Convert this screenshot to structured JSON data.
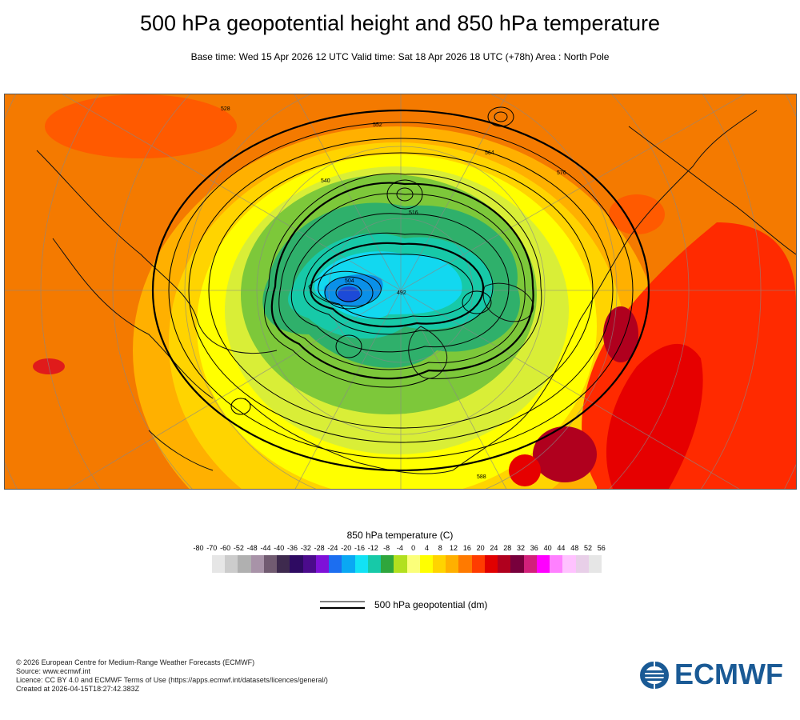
{
  "header": {
    "title": "500 hPa geopotential height and 850 hPa temperature",
    "subtitle": "Base time: Wed 15 Apr 2026 12 UTC Valid time: Sat 18 Apr 2026 18 UTC (+78h) Area : North Pole"
  },
  "map": {
    "contour_labels": [
      "528",
      "552",
      "576",
      "564",
      "540",
      "516",
      "504",
      "588",
      "492"
    ]
  },
  "legend": {
    "title": "850 hPa temperature (C)",
    "ticks": [
      "-80",
      "-70",
      "-60",
      "-52",
      "-48",
      "-44",
      "-40",
      "-36",
      "-32",
      "-28",
      "-24",
      "-20",
      "-16",
      "-12",
      "-8",
      "-4",
      "0",
      "4",
      "8",
      "12",
      "16",
      "20",
      "24",
      "28",
      "32",
      "36",
      "40",
      "44",
      "48",
      "52",
      "56"
    ],
    "colors": [
      "#e6e6e6",
      "#cccccc",
      "#b0b0b0",
      "#a893a8",
      "#715b71",
      "#3e2a4e",
      "#2e0a62",
      "#4b0b8c",
      "#7f11d8",
      "#1c6ef0",
      "#0aa8f3",
      "#12e2f5",
      "#17c9a8",
      "#2fa63d",
      "#b2e01f",
      "#fbff7a",
      "#ffff00",
      "#ffd400",
      "#ffb000",
      "#ff7a00",
      "#ff3c00",
      "#e10000",
      "#b0001e",
      "#78003c",
      "#d2207a",
      "#ff00ff",
      "#ff80ff",
      "#ffc2ff",
      "#e8cfe8",
      "#e6e6e6"
    ],
    "contour_label": "500 hPa geopotential (dm)"
  },
  "credits": {
    "line1": "© 2026 European Centre for Medium-Range Weather Forecasts (ECMWF)",
    "line2": "Source: www.ecmwf.int",
    "line3": "Licence: CC BY 4.0 and ECMWF Terms of Use (https://apps.ecmwf.int/datasets/licences/general/)",
    "line4": "Created at 2026-04-15T18:27:42.383Z"
  },
  "logo": {
    "text": "ECMWF",
    "color": "#1a5a95"
  }
}
